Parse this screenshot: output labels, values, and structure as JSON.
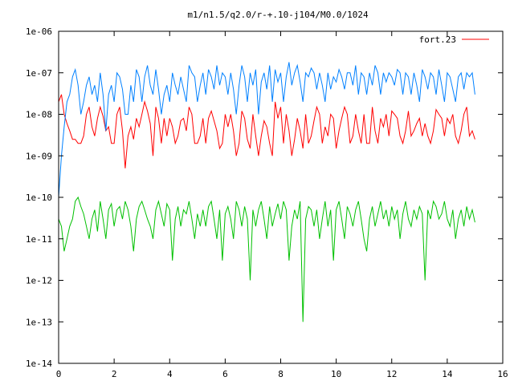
{
  "chart_data": {
    "type": "line",
    "title": "m1/n1.5/q2.0/r-+.10-j104/M0.0/1024",
    "xlabel": "",
    "ylabel": "",
    "x_range": [
      0,
      16
    ],
    "y_range": [
      1e-14,
      1e-06
    ],
    "y_scale": "log",
    "grid": false,
    "legend_position": "top-right",
    "x_ticks": [
      "0",
      "2",
      "4",
      "6",
      "8",
      "10",
      "12",
      "14",
      "16"
    ],
    "y_ticks": [
      "1e-06",
      "1e-07",
      "1e-08",
      "1e-09",
      "1e-10",
      "1e-11",
      "1e-12",
      "1e-13",
      "1e-14"
    ],
    "series": [
      {
        "name": "fort.23",
        "color": "#ff0000",
        "x": [
          0.0,
          0.1,
          0.2,
          0.3,
          0.4,
          0.5,
          0.6,
          0.7,
          0.8,
          0.9,
          1.0,
          1.1,
          1.2,
          1.3,
          1.4,
          1.5,
          1.6,
          1.7,
          1.8,
          1.9,
          2.0,
          2.1,
          2.2,
          2.3,
          2.4,
          2.5,
          2.6,
          2.7,
          2.8,
          2.9,
          3.0,
          3.1,
          3.2,
          3.3,
          3.4,
          3.5,
          3.6,
          3.7,
          3.8,
          3.9,
          4.0,
          4.1,
          4.2,
          4.3,
          4.4,
          4.5,
          4.6,
          4.7,
          4.8,
          4.9,
          5.0,
          5.1,
          5.2,
          5.3,
          5.4,
          5.5,
          5.6,
          5.7,
          5.8,
          5.9,
          6.0,
          6.1,
          6.2,
          6.3,
          6.4,
          6.5,
          6.6,
          6.7,
          6.8,
          6.9,
          7.0,
          7.1,
          7.2,
          7.3,
          7.4,
          7.5,
          7.6,
          7.7,
          7.8,
          7.9,
          8.0,
          8.1,
          8.2,
          8.3,
          8.4,
          8.5,
          8.6,
          8.7,
          8.8,
          8.9,
          9.0,
          9.1,
          9.2,
          9.3,
          9.4,
          9.5,
          9.6,
          9.7,
          9.8,
          9.9,
          10.0,
          10.1,
          10.2,
          10.3,
          10.4,
          10.5,
          10.6,
          10.7,
          10.8,
          10.9,
          11.0,
          11.1,
          11.2,
          11.3,
          11.4,
          11.5,
          11.6,
          11.7,
          11.8,
          11.9,
          12.0,
          12.1,
          12.2,
          12.3,
          12.4,
          12.5,
          12.6,
          12.7,
          12.8,
          12.9,
          13.0,
          13.1,
          13.2,
          13.3,
          13.4,
          13.5,
          13.6,
          13.7,
          13.8,
          13.9,
          14.0,
          14.1,
          14.2,
          14.3,
          14.4,
          14.5,
          14.6,
          14.7,
          14.8,
          14.9,
          15.0
        ],
        "y": [
          2e-08,
          3e-08,
          1e-08,
          6e-09,
          4e-09,
          2.5e-09,
          2.5e-09,
          2e-09,
          2e-09,
          3e-09,
          1e-08,
          1.5e-08,
          5e-09,
          3e-09,
          8e-09,
          1.5e-08,
          9e-09,
          4e-09,
          5e-09,
          2e-09,
          2e-09,
          1e-08,
          1.5e-08,
          4e-09,
          5e-10,
          3e-09,
          5e-09,
          2.5e-09,
          8e-09,
          5e-09,
          1e-08,
          2e-08,
          1.2e-08,
          6e-09,
          1e-09,
          1.5e-08,
          8e-09,
          2e-09,
          8e-09,
          3e-09,
          8e-09,
          5e-09,
          2e-09,
          3e-09,
          7e-09,
          8e-09,
          4e-09,
          1.5e-08,
          1e-08,
          2e-09,
          2e-09,
          3e-09,
          8e-09,
          2e-09,
          8e-09,
          1.2e-08,
          7e-09,
          4e-09,
          1.5e-09,
          2e-09,
          1e-08,
          5e-09,
          1e-08,
          4e-09,
          1e-09,
          2e-09,
          1.2e-08,
          8e-09,
          2.5e-09,
          1.5e-09,
          1e-08,
          3e-09,
          1e-09,
          3e-09,
          7e-09,
          5e-09,
          2e-09,
          1e-09,
          2e-08,
          8e-09,
          1.5e-08,
          2e-09,
          1e-08,
          4e-09,
          1e-09,
          2.5e-09,
          8e-09,
          4e-09,
          1.5e-09,
          1e-08,
          2e-09,
          3e-09,
          7e-09,
          1.5e-08,
          1e-08,
          2e-09,
          5e-09,
          3e-09,
          1e-08,
          8e-09,
          1.5e-09,
          4e-09,
          8e-09,
          1.5e-08,
          1e-08,
          2e-09,
          3e-09,
          1e-08,
          4e-09,
          2e-09,
          1e-08,
          2e-09,
          2e-09,
          1.5e-08,
          4e-09,
          2e-09,
          8e-09,
          5e-09,
          1e-08,
          3e-09,
          1.2e-08,
          1e-08,
          8e-09,
          3e-09,
          2e-09,
          4e-09,
          1.2e-08,
          3e-09,
          4e-09,
          6e-09,
          8e-09,
          3e-09,
          6e-09,
          3e-09,
          2e-09,
          4e-09,
          1.3e-08,
          1e-08,
          8e-09,
          3e-09,
          8e-09,
          6e-09,
          1e-08,
          3e-09,
          2e-09,
          4e-09,
          1e-08,
          1.5e-08,
          3e-09,
          4e-09,
          2.5e-09
        ]
      },
      {
        "name": "",
        "color": "#0080ff",
        "x": [
          0.0,
          0.1,
          0.2,
          0.3,
          0.4,
          0.5,
          0.6,
          0.7,
          0.8,
          0.9,
          1.0,
          1.1,
          1.2,
          1.3,
          1.4,
          1.5,
          1.6,
          1.7,
          1.8,
          1.9,
          2.0,
          2.1,
          2.2,
          2.3,
          2.4,
          2.5,
          2.6,
          2.7,
          2.8,
          2.9,
          3.0,
          3.1,
          3.2,
          3.3,
          3.4,
          3.5,
          3.6,
          3.7,
          3.8,
          3.9,
          4.0,
          4.1,
          4.2,
          4.3,
          4.4,
          4.5,
          4.6,
          4.7,
          4.8,
          4.9,
          5.0,
          5.1,
          5.2,
          5.3,
          5.4,
          5.5,
          5.6,
          5.7,
          5.8,
          5.9,
          6.0,
          6.1,
          6.2,
          6.3,
          6.4,
          6.5,
          6.6,
          6.7,
          6.8,
          6.9,
          7.0,
          7.1,
          7.2,
          7.3,
          7.4,
          7.5,
          7.6,
          7.7,
          7.8,
          7.9,
          8.0,
          8.1,
          8.2,
          8.3,
          8.4,
          8.5,
          8.6,
          8.7,
          8.8,
          8.9,
          9.0,
          9.1,
          9.2,
          9.3,
          9.4,
          9.5,
          9.6,
          9.7,
          9.8,
          9.9,
          10.0,
          10.1,
          10.2,
          10.3,
          10.4,
          10.5,
          10.6,
          10.7,
          10.8,
          10.9,
          11.0,
          11.1,
          11.2,
          11.3,
          11.4,
          11.5,
          11.6,
          11.7,
          11.8,
          11.9,
          12.0,
          12.1,
          12.2,
          12.3,
          12.4,
          12.5,
          12.6,
          12.7,
          12.8,
          12.9,
          13.0,
          13.1,
          13.2,
          13.3,
          13.4,
          13.5,
          13.6,
          13.7,
          13.8,
          13.9,
          14.0,
          14.1,
          14.2,
          14.3,
          14.4,
          14.5,
          14.6,
          14.7,
          14.8,
          14.9,
          15.0
        ],
        "y": [
          1e-10,
          1e-09,
          5e-09,
          2e-08,
          3e-08,
          8e-08,
          1.2e-07,
          5e-08,
          1e-08,
          2e-08,
          5e-08,
          8e-08,
          3e-08,
          5e-08,
          2e-08,
          1e-07,
          3e-08,
          4e-09,
          3e-08,
          5e-08,
          2e-08,
          1e-07,
          8e-08,
          4e-08,
          1e-08,
          1e-08,
          5e-08,
          2e-08,
          1.2e-07,
          8e-08,
          2e-08,
          8e-08,
          1.5e-07,
          5e-08,
          3e-08,
          1.2e-07,
          4e-08,
          1e-08,
          3e-08,
          5e-08,
          2e-08,
          1e-07,
          5e-08,
          3e-08,
          8e-08,
          4e-08,
          2e-08,
          1.5e-07,
          1e-07,
          8e-08,
          2e-08,
          5e-08,
          1e-07,
          3e-08,
          1.2e-07,
          8e-08,
          4e-08,
          1.5e-07,
          5e-08,
          1e-07,
          8e-08,
          3e-08,
          1e-07,
          4e-08,
          1e-08,
          5e-08,
          1.5e-07,
          8e-08,
          2e-08,
          1e-07,
          5e-08,
          1.2e-07,
          1e-08,
          6e-08,
          1e-07,
          4e-08,
          1.5e-07,
          2e-08,
          1.2e-07,
          6e-08,
          1e-07,
          2e-08,
          8e-08,
          1.8e-07,
          5e-08,
          1e-07,
          1.5e-07,
          6e-08,
          2e-08,
          1e-07,
          8e-08,
          1.3e-07,
          1e-07,
          4e-08,
          1e-07,
          5e-08,
          2e-08,
          1e-07,
          4e-08,
          8e-08,
          6e-08,
          1.2e-07,
          8e-08,
          4e-08,
          1e-07,
          1e-07,
          5e-08,
          1.5e-07,
          3e-08,
          1e-07,
          8e-08,
          3e-08,
          1e-07,
          5e-08,
          1.5e-07,
          1e-07,
          3e-08,
          1e-07,
          6e-08,
          1e-07,
          8e-08,
          5e-08,
          1.2e-07,
          1e-07,
          3e-08,
          1e-07,
          8e-08,
          3e-08,
          1e-07,
          5e-08,
          2e-08,
          1.2e-07,
          8e-08,
          4e-08,
          1e-07,
          8e-08,
          3e-08,
          1.2e-07,
          5e-08,
          2e-08,
          1e-07,
          8e-08,
          4e-08,
          2e-08,
          8e-08,
          1e-07,
          4e-08,
          1e-07,
          8e-08,
          1e-07,
          3e-08
        ]
      },
      {
        "name": "",
        "color": "#00c000",
        "x": [
          0.0,
          0.1,
          0.2,
          0.3,
          0.4,
          0.5,
          0.6,
          0.7,
          0.8,
          0.9,
          1.0,
          1.1,
          1.2,
          1.3,
          1.4,
          1.5,
          1.6,
          1.7,
          1.8,
          1.9,
          2.0,
          2.1,
          2.2,
          2.3,
          2.4,
          2.5,
          2.6,
          2.7,
          2.8,
          2.9,
          3.0,
          3.1,
          3.2,
          3.3,
          3.4,
          3.5,
          3.6,
          3.7,
          3.8,
          3.9,
          4.0,
          4.1,
          4.2,
          4.3,
          4.4,
          4.5,
          4.6,
          4.7,
          4.8,
          4.9,
          5.0,
          5.1,
          5.2,
          5.3,
          5.4,
          5.5,
          5.6,
          5.7,
          5.8,
          5.9,
          6.0,
          6.1,
          6.2,
          6.3,
          6.4,
          6.5,
          6.6,
          6.7,
          6.8,
          6.9,
          7.0,
          7.1,
          7.2,
          7.3,
          7.4,
          7.5,
          7.6,
          7.7,
          7.8,
          7.9,
          8.0,
          8.1,
          8.2,
          8.3,
          8.4,
          8.5,
          8.6,
          8.7,
          8.8,
          8.9,
          9.0,
          9.1,
          9.2,
          9.3,
          9.4,
          9.5,
          9.6,
          9.7,
          9.8,
          9.9,
          10.0,
          10.1,
          10.2,
          10.3,
          10.4,
          10.5,
          10.6,
          10.7,
          10.8,
          10.9,
          11.0,
          11.1,
          11.2,
          11.3,
          11.4,
          11.5,
          11.6,
          11.7,
          11.8,
          11.9,
          12.0,
          12.1,
          12.2,
          12.3,
          12.4,
          12.5,
          12.6,
          12.7,
          12.8,
          12.9,
          13.0,
          13.1,
          13.2,
          13.3,
          13.4,
          13.5,
          13.6,
          13.7,
          13.8,
          13.9,
          14.0,
          14.1,
          14.2,
          14.3,
          14.4,
          14.5,
          14.6,
          14.7,
          14.8,
          14.9,
          15.0
        ],
        "y": [
          3e-11,
          2e-11,
          5e-12,
          1e-11,
          2e-11,
          3e-11,
          8e-11,
          1e-10,
          6e-11,
          4e-11,
          2e-11,
          1e-11,
          3e-11,
          5e-11,
          1.5e-11,
          8e-11,
          3e-11,
          1e-11,
          5e-11,
          7e-11,
          2e-11,
          5e-11,
          6e-11,
          3e-11,
          8e-11,
          5e-11,
          2e-11,
          5e-12,
          3e-11,
          6e-11,
          8e-11,
          5e-11,
          3e-11,
          2e-11,
          1e-11,
          5e-11,
          8e-11,
          4e-11,
          2e-11,
          7e-11,
          5e-11,
          3e-12,
          3e-11,
          6e-11,
          2e-11,
          5e-11,
          4e-11,
          8e-11,
          3e-11,
          1e-11,
          4e-11,
          2e-11,
          5e-11,
          2e-11,
          6e-11,
          8e-11,
          3e-11,
          1e-11,
          5e-11,
          3e-12,
          4e-11,
          6e-11,
          3e-11,
          1e-11,
          8e-11,
          5e-11,
          2e-11,
          6e-11,
          3e-11,
          1e-12,
          5e-11,
          2e-11,
          5e-11,
          8e-11,
          3e-11,
          1e-11,
          6e-11,
          2e-11,
          4e-11,
          7e-11,
          3e-11,
          8e-11,
          5e-11,
          3e-12,
          2e-11,
          5e-11,
          3e-11,
          8e-11,
          1e-13,
          3e-11,
          6e-11,
          5e-11,
          2e-11,
          5e-11,
          1e-11,
          3e-11,
          8e-11,
          2e-11,
          5e-11,
          3e-12,
          5e-11,
          8e-11,
          3e-11,
          1e-11,
          6e-11,
          4e-11,
          2e-11,
          5e-11,
          8e-11,
          3e-11,
          1e-11,
          5e-12,
          3e-11,
          6e-11,
          2e-11,
          4e-11,
          8e-11,
          3e-11,
          5e-11,
          2e-11,
          6e-11,
          3e-11,
          5e-11,
          1e-11,
          4e-11,
          8e-11,
          3e-11,
          2e-11,
          5e-11,
          3e-11,
          6e-11,
          4e-11,
          1e-12,
          5e-11,
          3e-11,
          8e-11,
          6e-11,
          3e-11,
          4e-11,
          8e-11,
          3e-11,
          2e-11,
          5e-11,
          1e-11,
          3e-11,
          5e-11,
          2e-11,
          6e-11,
          3e-11,
          5e-11,
          2.5e-11
        ]
      }
    ]
  }
}
